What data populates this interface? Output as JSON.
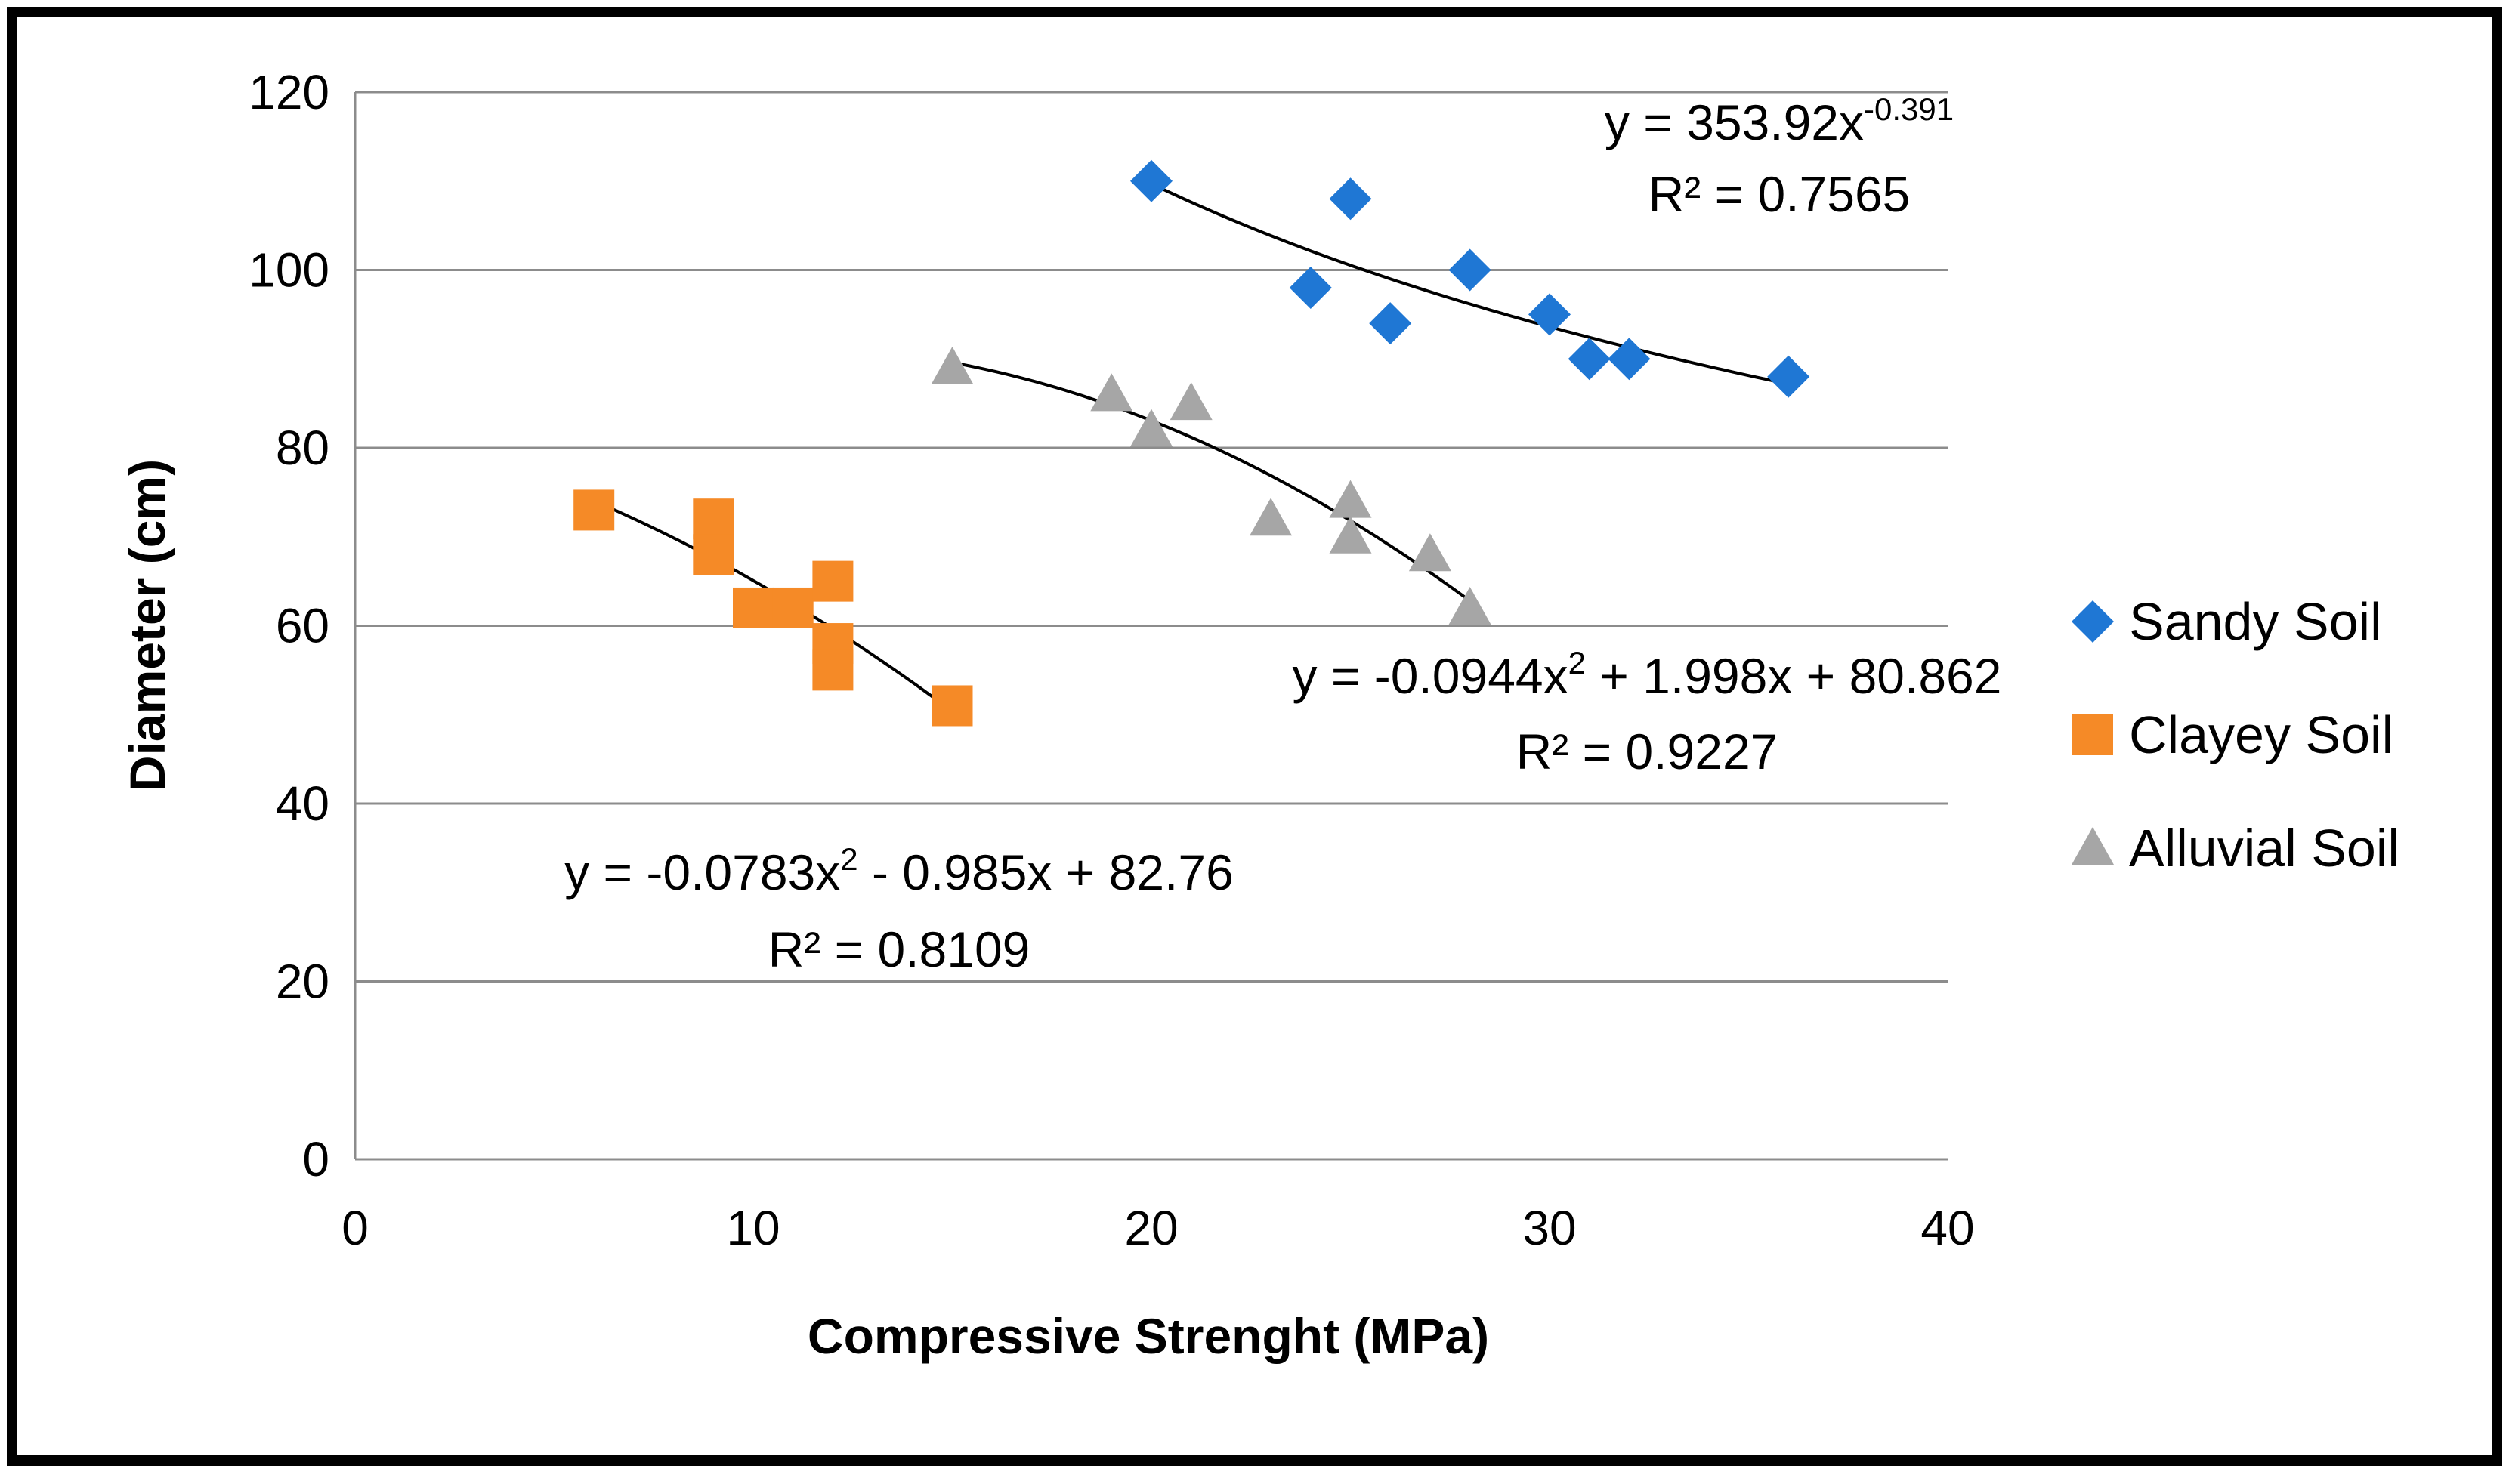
{
  "chart_data": {
    "type": "scatter",
    "title": "",
    "xlabel": "Compressive Strenght (MPa)",
    "ylabel": "Diameter (cm)",
    "xlim": [
      0,
      40
    ],
    "ylim": [
      0,
      120
    ],
    "xticks": [
      0,
      10,
      20,
      30,
      40
    ],
    "yticks": [
      0,
      20,
      40,
      60,
      80,
      100,
      120
    ],
    "grid": "horizontal",
    "legend_position": "right",
    "series": [
      {
        "name": "Sandy Soil",
        "marker": "diamond",
        "color": "#1f77d4",
        "x": [
          20,
          24,
          25,
          26,
          28,
          30,
          31,
          32,
          36
        ],
        "y": [
          110,
          98,
          108,
          94,
          100,
          95,
          90,
          90,
          88
        ],
        "trendline": {
          "type": "power",
          "a": 353.92,
          "b": -0.391,
          "x_range": [
            20,
            36
          ],
          "equation": {
            "prefix": "y = 353.92x",
            "exponent": "-0.391"
          },
          "r2": "R² = 0.7565"
        }
      },
      {
        "name": "Clayey Soil",
        "marker": "square",
        "color": "#f58a27",
        "x": [
          6,
          9,
          9,
          10,
          11,
          12,
          12,
          12,
          15
        ],
        "y": [
          73,
          72,
          68,
          62,
          62,
          65,
          58,
          55,
          51
        ],
        "trendline": {
          "type": "poly2",
          "coeffs": [
            -0.0783,
            -0.985,
            82.76
          ],
          "x_range": [
            6,
            15
          ],
          "equation": {
            "prefix": "y = -0.0783x",
            "exponent": "2",
            "suffix": " - 0.985x + 82.76"
          },
          "r2": "R² = 0.8109"
        }
      },
      {
        "name": "Alluvial Soil",
        "marker": "triangle",
        "color": "#a6a6a6",
        "x": [
          15,
          19,
          20,
          21,
          23,
          25,
          25,
          27,
          28
        ],
        "y": [
          89,
          86,
          82,
          85,
          72,
          74,
          70,
          68,
          62
        ],
        "trendline": {
          "type": "poly2",
          "coeffs": [
            -0.0944,
            1.998,
            80.862
          ],
          "x_range": [
            15,
            28
          ],
          "equation": {
            "prefix": "y = -0.0944x",
            "exponent": "2",
            "suffix": " + 1.998x + 80.862"
          },
          "r2": "R² = 0.9227"
        }
      }
    ]
  }
}
